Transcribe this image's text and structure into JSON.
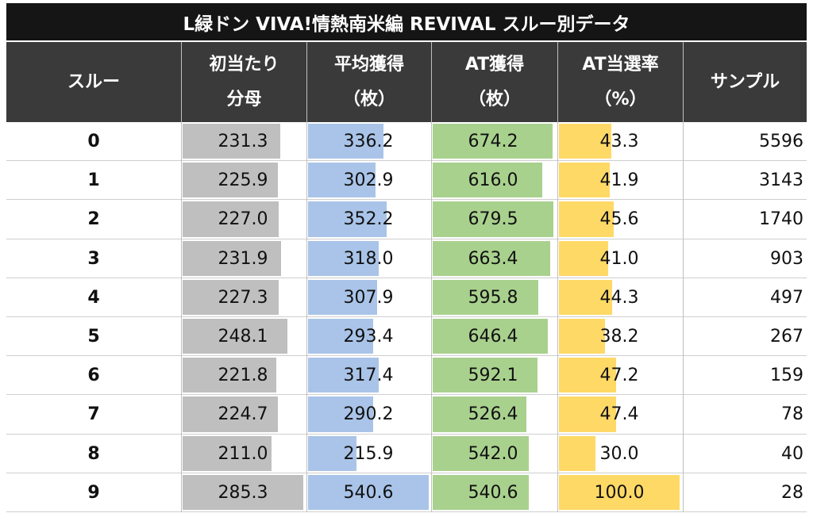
{
  "title": "L緑ドン VIVA!情熱南米編 REVIVAL スルー別データ",
  "headers": [
    {
      "line1": "スルー",
      "line2": ""
    },
    {
      "line1": "初当たり",
      "line2": "分母"
    },
    {
      "line1": "平均獲得",
      "line2": "（枚）"
    },
    {
      "line1": "AT獲得",
      "line2": "（枚）"
    },
    {
      "line1": "AT当選率",
      "line2": "（%）"
    },
    {
      "line1": "サンプル",
      "line2": ""
    }
  ],
  "colors": {
    "header_bg": "#3a3a3a",
    "title_bg": "#151515",
    "bar_gray": "#bfbfbf",
    "bar_blue": "#a9c4e8",
    "bar_green": "#a9d18e",
    "bar_yellow": "#ffd966"
  },
  "chart_data": {
    "type": "table",
    "columns": [
      "スルー",
      "初当たり分母",
      "平均獲得（枚）",
      "AT獲得（枚）",
      "AT当選率（%）",
      "サンプル"
    ],
    "rows": [
      {
        "through": "0",
        "denominator": "231.3",
        "avg_gain": "336.2",
        "at_gain": "674.2",
        "at_rate": "43.3",
        "sample": "5596"
      },
      {
        "through": "1",
        "denominator": "225.9",
        "avg_gain": "302.9",
        "at_gain": "616.0",
        "at_rate": "41.9",
        "sample": "3143"
      },
      {
        "through": "2",
        "denominator": "227.0",
        "avg_gain": "352.2",
        "at_gain": "679.5",
        "at_rate": "45.6",
        "sample": "1740"
      },
      {
        "through": "3",
        "denominator": "231.9",
        "avg_gain": "318.0",
        "at_gain": "663.4",
        "at_rate": "41.0",
        "sample": "903"
      },
      {
        "through": "4",
        "denominator": "227.3",
        "avg_gain": "307.9",
        "at_gain": "595.8",
        "at_rate": "44.3",
        "sample": "497"
      },
      {
        "through": "5",
        "denominator": "248.1",
        "avg_gain": "293.4",
        "at_gain": "646.4",
        "at_rate": "38.2",
        "sample": "267"
      },
      {
        "through": "6",
        "denominator": "221.8",
        "avg_gain": "317.4",
        "at_gain": "592.1",
        "at_rate": "47.2",
        "sample": "159"
      },
      {
        "through": "7",
        "denominator": "224.7",
        "avg_gain": "290.2",
        "at_gain": "526.4",
        "at_rate": "47.4",
        "sample": "78"
      },
      {
        "through": "8",
        "denominator": "211.0",
        "avg_gain": "215.9",
        "at_gain": "542.0",
        "at_rate": "30.0",
        "sample": "40"
      },
      {
        "through": "9",
        "denominator": "285.3",
        "avg_gain": "540.6",
        "at_gain": "540.6",
        "at_rate": "100.0",
        "sample": "28"
      }
    ]
  }
}
